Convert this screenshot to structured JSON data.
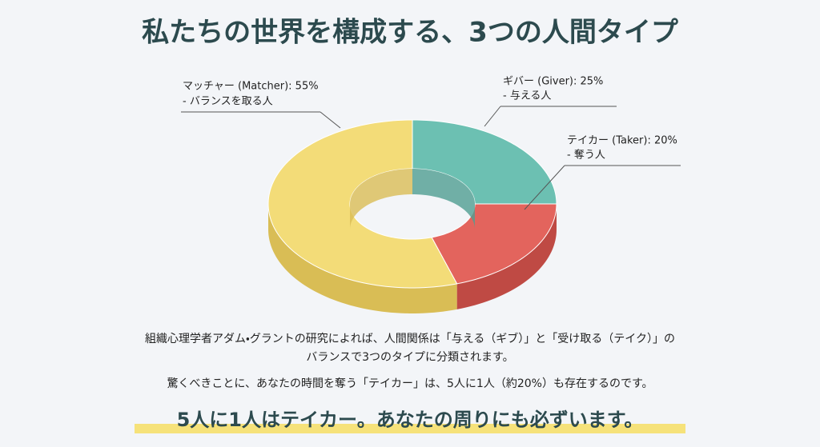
{
  "chart_data": {
    "type": "donut",
    "title": "私たちの世界を構成する、3つの人間タイプ",
    "values": [
      25,
      20,
      55
    ],
    "value_labels": [
      "ギバー (Giver): 25%",
      "テイカー (Taker): 20%",
      "マッチャー (Matcher): 55%"
    ],
    "descriptions": [
      "- 与える人",
      "- 奪う人",
      "- バランスを取る人"
    ],
    "colors": [
      "#6cc0b2",
      "#e3645d",
      "#f3dc78"
    ],
    "side_colors": [
      "#4f9e91",
      "#bf4a44",
      "#d9bd55"
    ]
  },
  "body": [
    "組織心理学者アダム・グラントの研究によれば、人間関係は「与える（ギブ）」と「受け取る（テイク）」の",
    "バランスで3つのタイプに分類されます。"
  ],
  "note": "驚くべきことに、あなたの時間を奪う「テイカー」は、5人に1人（約20%）も存在するのです。",
  "highlight": "5人に1人はテイカー。あなたの周りにも必ずいます。"
}
